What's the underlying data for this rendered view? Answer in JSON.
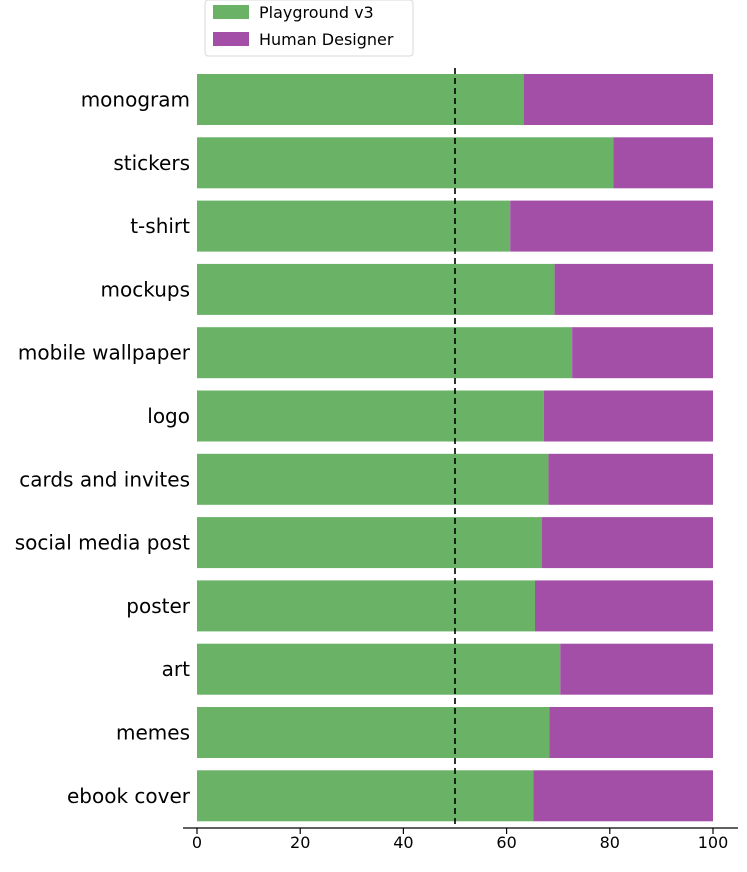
{
  "chart_data": {
    "type": "bar",
    "orientation": "horizontal",
    "stacked": true,
    "categories": [
      "monogram",
      "stickers",
      "t-shirt",
      "mockups",
      "mobile wallpaper",
      "logo",
      "cards and invites",
      "social media post",
      "poster",
      "art",
      "memes",
      "ebook cover"
    ],
    "series": [
      {
        "name": "Playground v3",
        "color": "#69b266",
        "values": [
          63.3,
          80.7,
          60.7,
          69.3,
          72.7,
          67.2,
          68.1,
          66.8,
          65.5,
          70.4,
          68.3,
          65.2
        ]
      },
      {
        "name": "Human Designer",
        "color": "#a34fa7",
        "values": [
          36.7,
          19.3,
          39.3,
          30.7,
          27.3,
          32.8,
          31.9,
          33.2,
          34.5,
          29.6,
          31.7,
          34.8
        ]
      }
    ],
    "xlim": [
      0,
      100
    ],
    "xticks": [
      0,
      20,
      40,
      60,
      80,
      100
    ],
    "reference_line": 50,
    "legend_position": "top-left",
    "title": "",
    "xlabel": "",
    "ylabel": "",
    "grid": false
  }
}
